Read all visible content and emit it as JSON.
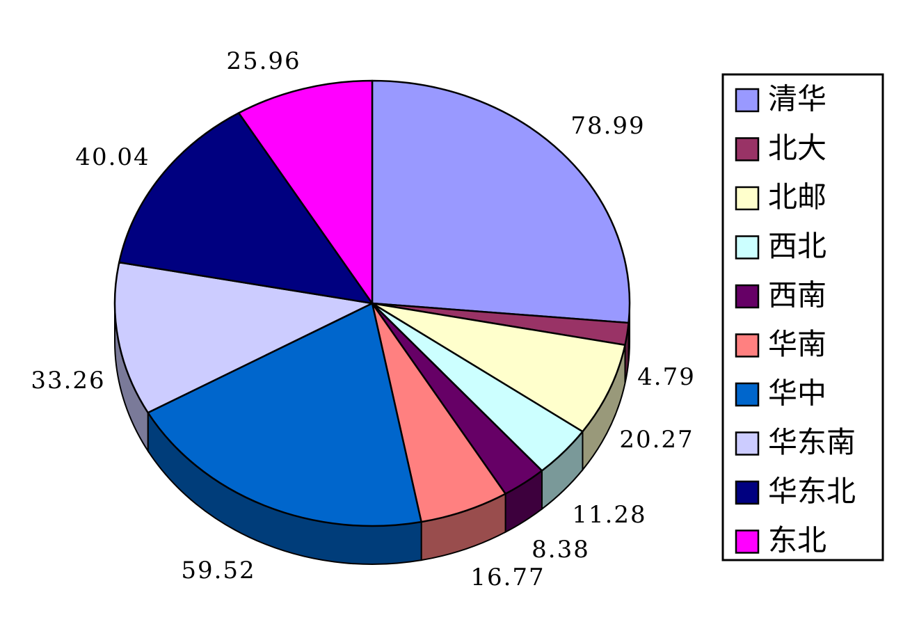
{
  "chart_data": {
    "type": "pie",
    "title": "",
    "slices": [
      {
        "label": "清华",
        "value": 78.99,
        "value_text": "78.99",
        "color": "#9999FF",
        "side": "#5C5C99"
      },
      {
        "label": "北大",
        "value": 4.79,
        "value_text": "4.79",
        "color": "#993366",
        "side": "#5C1F3D"
      },
      {
        "label": "北邮",
        "value": 20.27,
        "value_text": "20.27",
        "color": "#FFFFCC",
        "side": "#99997A"
      },
      {
        "label": "西北",
        "value": 11.28,
        "value_text": "11.28",
        "color": "#CCFFFF",
        "side": "#7A9999"
      },
      {
        "label": "西南",
        "value": 8.38,
        "value_text": "8.38",
        "color": "#660066",
        "side": "#3D003D"
      },
      {
        "label": "华南",
        "value": 16.77,
        "value_text": "16.77",
        "color": "#FF8080",
        "side": "#994D4D"
      },
      {
        "label": "华中",
        "value": 59.52,
        "value_text": "59.52",
        "color": "#0066CC",
        "side": "#003D7A"
      },
      {
        "label": "华东南",
        "value": 33.26,
        "value_text": "33.26",
        "color": "#CCCCFF",
        "side": "#7A7A99"
      },
      {
        "label": "华东北",
        "value": 40.04,
        "value_text": "40.04",
        "color": "#000080",
        "side": "#00004D"
      },
      {
        "label": "东北",
        "value": 25.96,
        "value_text": "25.96",
        "color": "#FF00FF",
        "side": "#990099"
      }
    ],
    "start_angle_deg": 90,
    "direction": "clockwise",
    "perspective": "3d-tilted",
    "legend_position": "right"
  }
}
